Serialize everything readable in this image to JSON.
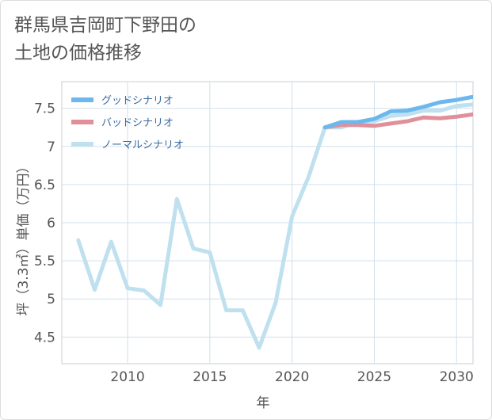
{
  "title_line1": "群馬県吉岡町下野田の",
  "title_line2": "土地の価格推移",
  "chart_data": {
    "type": "line",
    "xlabel": "年",
    "ylabel": "坪（3.3㎡）単価（万円）",
    "xlim": [
      2006,
      2031
    ],
    "ylim": [
      4.15,
      7.85
    ],
    "xticks": [
      2010,
      2015,
      2020,
      2025,
      2030
    ],
    "yticks": [
      4.5,
      5,
      5.5,
      6,
      6.5,
      7,
      7.5
    ],
    "ytick_labels": [
      "4.5",
      "5",
      "5.5",
      "6",
      "6.5",
      "7",
      "7.5"
    ],
    "grid": true,
    "legend_position": "top-left",
    "series": [
      {
        "name": "グッドシナリオ",
        "color": "#6cb8ee",
        "x": [
          2022,
          2023,
          2024,
          2025,
          2026,
          2027,
          2028,
          2029,
          2030,
          2031
        ],
        "y": [
          7.25,
          7.32,
          7.32,
          7.36,
          7.46,
          7.47,
          7.52,
          7.58,
          7.61,
          7.65
        ]
      },
      {
        "name": "バッドシナリオ",
        "color": "#e0909a",
        "x": [
          2022,
          2023,
          2024,
          2025,
          2026,
          2027,
          2028,
          2029,
          2030,
          2031
        ],
        "y": [
          7.25,
          7.28,
          7.28,
          7.27,
          7.3,
          7.33,
          7.38,
          7.37,
          7.39,
          7.42
        ]
      },
      {
        "name": "ノーマルシナリオ",
        "color": "#bfe0ee",
        "x": [
          2007,
          2008,
          2009,
          2010,
          2011,
          2012,
          2013,
          2014,
          2015,
          2016,
          2017,
          2018,
          2019,
          2020,
          2021,
          2022,
          2023,
          2024,
          2025,
          2026,
          2027,
          2028,
          2029,
          2030,
          2031
        ],
        "y": [
          5.77,
          5.12,
          5.75,
          5.14,
          5.11,
          4.92,
          6.31,
          5.66,
          5.61,
          4.85,
          4.85,
          4.36,
          4.95,
          6.08,
          6.6,
          7.25,
          7.25,
          7.32,
          7.33,
          7.4,
          7.42,
          7.47,
          7.47,
          7.53,
          7.55
        ]
      }
    ]
  }
}
